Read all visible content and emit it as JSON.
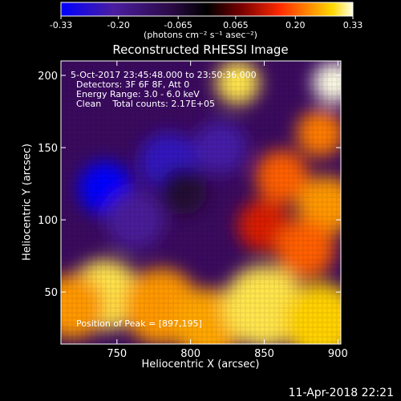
{
  "chart_data": {
    "type": "heatmap",
    "title": "Reconstructed RHESSI Image",
    "xlabel": "Heliocentric X (arcsec)",
    "ylabel": "Heliocentric Y (arcsec)",
    "xlim": [
      712,
      902
    ],
    "ylim": [
      14,
      210
    ],
    "x_ticks": [
      750,
      800,
      850,
      900
    ],
    "y_ticks": [
      50,
      100,
      150,
      200
    ],
    "colorbar": {
      "label": "(photons cm⁻² s⁻¹ asec⁻²)",
      "ticks": [
        "-0.33",
        "-0.20",
        "-0.065",
        "0.065",
        "0.20",
        "0.33"
      ],
      "tick_values": [
        -0.33,
        -0.2,
        -0.065,
        0.065,
        0.2,
        0.33
      ],
      "range": [
        -0.33,
        0.33
      ],
      "colors": [
        "#0000ff",
        "#4b1ea0",
        "#2a0a44",
        "#000000",
        "#7a0000",
        "#ff2a00",
        "#ff8a00",
        "#ffd800",
        "#ffffe6"
      ]
    },
    "annotations": [
      "5-Oct-2017 23:45:48.000 to 23:50:36.000",
      "Detectors: 3F 6F 8F, Att 0",
      "Energy Range: 3.0 - 6.0 keV",
      "Clean    Total counts: 2.17E+05"
    ],
    "peak_label": "Position of Peak = [897,195]",
    "peak_position": [
      897,
      195
    ],
    "regions": [
      {
        "x": 742,
        "y": 48,
        "value": 0.3,
        "r": 24
      },
      {
        "x": 780,
        "y": 40,
        "value": 0.24,
        "r": 26
      },
      {
        "x": 812,
        "y": 28,
        "value": 0.25,
        "r": 24
      },
      {
        "x": 850,
        "y": 40,
        "value": 0.3,
        "r": 28
      },
      {
        "x": 888,
        "y": 30,
        "value": 0.28,
        "r": 26
      },
      {
        "x": 720,
        "y": 40,
        "value": 0.24,
        "r": 22
      },
      {
        "x": 832,
        "y": 195,
        "value": 0.3,
        "r": 15
      },
      {
        "x": 897,
        "y": 195,
        "value": 0.33,
        "r": 14
      },
      {
        "x": 888,
        "y": 160,
        "value": 0.22,
        "r": 16
      },
      {
        "x": 862,
        "y": 130,
        "value": 0.2,
        "r": 18
      },
      {
        "x": 892,
        "y": 110,
        "value": 0.24,
        "r": 20
      },
      {
        "x": 850,
        "y": 96,
        "value": 0.14,
        "r": 18
      },
      {
        "x": 878,
        "y": 80,
        "value": 0.2,
        "r": 20
      },
      {
        "x": 742,
        "y": 122,
        "value": -0.33,
        "r": 18
      },
      {
        "x": 785,
        "y": 140,
        "value": -0.25,
        "r": 20
      },
      {
        "x": 820,
        "y": 150,
        "value": -0.22,
        "r": 18
      },
      {
        "x": 762,
        "y": 100,
        "value": -0.2,
        "r": 20
      },
      {
        "x": 795,
        "y": 120,
        "value": -0.06,
        "r": 16
      }
    ]
  },
  "footer": {
    "timestamp": "11-Apr-2018 22:21"
  }
}
